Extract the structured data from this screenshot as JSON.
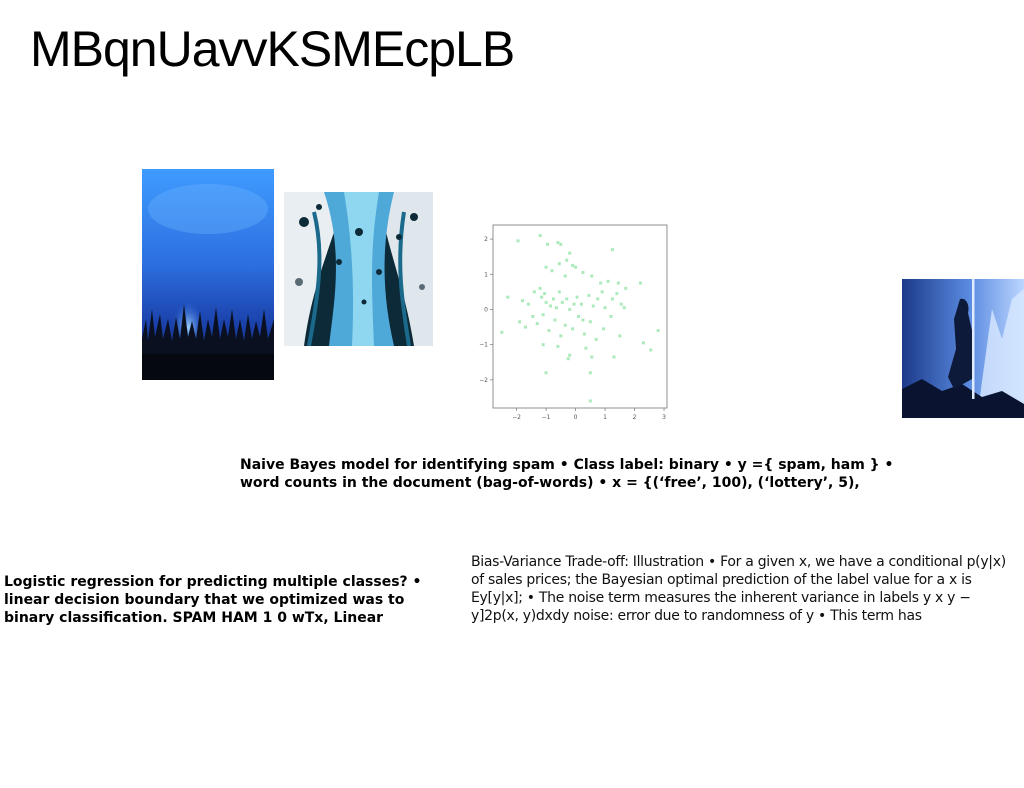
{
  "slide": {
    "title": "MBqnUavvKSMEcpLB",
    "paragraph_naive_bayes": "Naive Bayes model for identifying spam • Class label: binary • y ={ spam, ham } • word counts in the document (bag-of-words) • x = {(‘free’, 100), (‘lottery’, 5),",
    "paragraph_logistic": "Logistic regression for predicting multiple classes? • linear decision boundary that we optimized was to binary classification. SPAM HAM 1 0 wTx, Linear",
    "paragraph_bias_variance": "Bias-Variance Trade-off: Illustration • For a given x, we have a conditional p(y|x) of sales prices; the Bayesian optimal prediction of the label value for a x is Ey[y|x]; • The noise term measures the inherent variance in labels y  x  y − y]2p(x, y)dxdy    noise: error due to randomness of y • This term has"
  },
  "chart_data": {
    "type": "scatter",
    "xticks": [
      "−2",
      "−1",
      "0",
      "1",
      "2",
      "3"
    ],
    "yticks": [
      "2",
      "1",
      "0",
      "−1",
      "−2"
    ],
    "xlim": [
      -2.8,
      3.1
    ],
    "ylim": [
      -2.8,
      2.4
    ],
    "color": "#9ee6b0",
    "points": [
      [
        -1.95,
        1.95
      ],
      [
        -1.2,
        2.1
      ],
      [
        -0.95,
        1.85
      ],
      [
        -0.6,
        1.9
      ],
      [
        -0.5,
        1.85
      ],
      [
        -0.2,
        1.6
      ],
      [
        -0.3,
        1.4
      ],
      [
        1.25,
        1.7
      ],
      [
        -1.0,
        1.2
      ],
      [
        -0.8,
        1.1
      ],
      [
        -0.55,
        1.3
      ],
      [
        -0.35,
        0.95
      ],
      [
        -0.1,
        1.25
      ],
      [
        0.0,
        1.2
      ],
      [
        0.25,
        1.05
      ],
      [
        0.55,
        0.95
      ],
      [
        0.85,
        0.75
      ],
      [
        1.1,
        0.8
      ],
      [
        1.45,
        0.75
      ],
      [
        1.7,
        0.6
      ],
      [
        2.2,
        0.75
      ],
      [
        -2.3,
        0.35
      ],
      [
        -1.8,
        0.25
      ],
      [
        -1.6,
        0.15
      ],
      [
        -1.4,
        0.5
      ],
      [
        -1.2,
        0.6
      ],
      [
        -1.15,
        0.35
      ],
      [
        -1.0,
        0.2
      ],
      [
        -0.85,
        0.1
      ],
      [
        -0.75,
        0.3
      ],
      [
        -0.55,
        0.5
      ],
      [
        -0.45,
        0.2
      ],
      [
        -0.3,
        0.3
      ],
      [
        -0.2,
        0.0
      ],
      [
        0.05,
        0.35
      ],
      [
        0.2,
        0.15
      ],
      [
        0.45,
        0.4
      ],
      [
        0.6,
        0.1
      ],
      [
        0.75,
        0.3
      ],
      [
        0.9,
        0.5
      ],
      [
        1.0,
        0.05
      ],
      [
        1.25,
        0.3
      ],
      [
        1.4,
        0.45
      ],
      [
        1.55,
        0.15
      ],
      [
        -2.5,
        -0.65
      ],
      [
        -1.9,
        -0.35
      ],
      [
        -1.7,
        -0.5
      ],
      [
        -1.45,
        -0.2
      ],
      [
        -1.3,
        -0.4
      ],
      [
        -1.1,
        -0.15
      ],
      [
        -0.9,
        -0.6
      ],
      [
        -0.7,
        -0.3
      ],
      [
        -0.5,
        -0.75
      ],
      [
        -0.35,
        -0.45
      ],
      [
        -0.1,
        -0.55
      ],
      [
        0.1,
        -0.2
      ],
      [
        0.3,
        -0.7
      ],
      [
        0.5,
        -0.35
      ],
      [
        0.7,
        -0.85
      ],
      [
        0.95,
        -0.55
      ],
      [
        1.2,
        -0.2
      ],
      [
        1.5,
        -0.75
      ],
      [
        -1.1,
        -1.0
      ],
      [
        -0.6,
        -1.05
      ],
      [
        -0.2,
        -1.3
      ],
      [
        0.35,
        -1.1
      ],
      [
        0.55,
        -1.35
      ],
      [
        1.3,
        -1.35
      ],
      [
        2.3,
        -0.95
      ],
      [
        -0.25,
        -1.4
      ],
      [
        -1.0,
        -1.8
      ],
      [
        0.5,
        -1.8
      ],
      [
        0.5,
        -2.6
      ],
      [
        2.55,
        -1.15
      ],
      [
        2.8,
        -0.6
      ],
      [
        -0.65,
        0.05
      ],
      [
        0.25,
        -0.3
      ],
      [
        -1.05,
        0.45
      ],
      [
        1.65,
        0.05
      ],
      [
        -0.05,
        0.15
      ]
    ]
  }
}
